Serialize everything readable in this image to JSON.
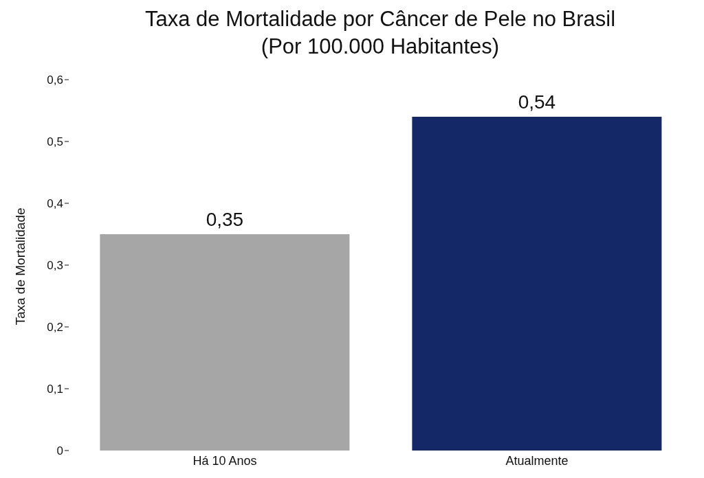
{
  "chart_data": {
    "type": "bar",
    "title": "Taxa de Mortalidade por Câncer de Pele no Brasil\n(Por 100.000 Habitantes)",
    "ylabel": "Taxa de Mortalidade",
    "categories": [
      "Há 10 Anos",
      "Atualmente"
    ],
    "values": [
      0.35,
      0.54
    ],
    "colors": [
      "#a6a6a6",
      "#142766"
    ],
    "value_labels": [
      "0,35",
      "0,54"
    ],
    "ylim": [
      0,
      0.6
    ],
    "yticks": [
      {
        "value": 0,
        "label": "0"
      },
      {
        "value": 0.1,
        "label": "0,1"
      },
      {
        "value": 0.2,
        "label": "0,2"
      },
      {
        "value": 0.3,
        "label": "0,3"
      },
      {
        "value": 0.4,
        "label": "0,4"
      },
      {
        "value": 0.5,
        "label": "0,5"
      },
      {
        "value": 0.6,
        "label": "0,6"
      }
    ],
    "grid": false,
    "legend": false
  }
}
